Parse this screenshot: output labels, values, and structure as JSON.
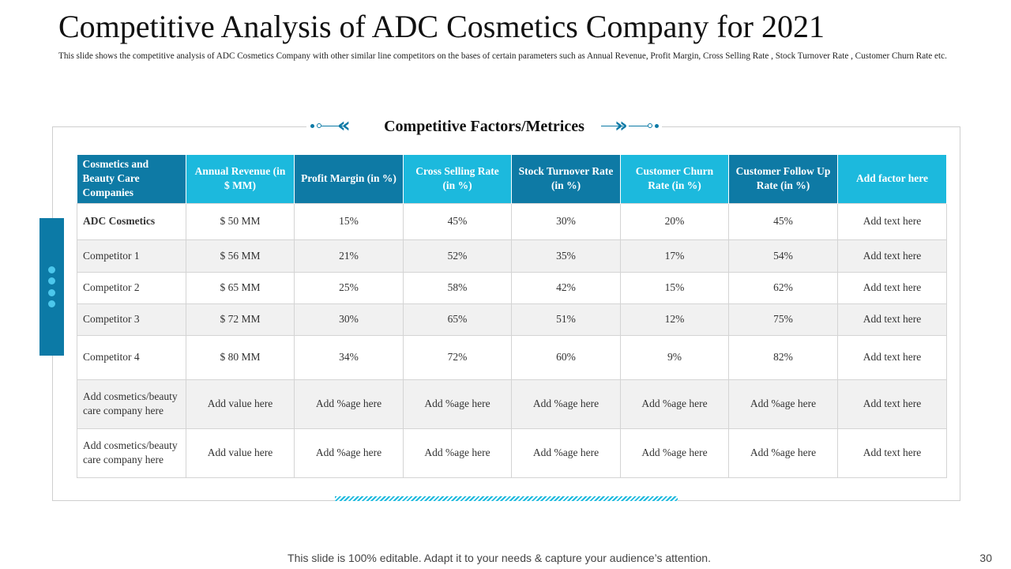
{
  "slide": {
    "title": "Competitive Analysis of ADC Cosmetics Company for 2021",
    "subtitle": "This slide shows the competitive analysis of ADC Cosmetics Company with other similar  line competitors on the bases of certain parameters such as Annual Revenue, Profit Margin, Cross Selling Rate , Stock Turnover Rate , Customer Churn Rate etc.",
    "footer": "This slide is 100% editable. Adapt it to your needs & capture your audience’s attention.",
    "page_number": "30"
  },
  "section": {
    "heading": "Competitive  Factors/Metrices",
    "left_chevron": "«",
    "right_chevron": "»"
  },
  "colors": {
    "dark_header": "#0e7aa5",
    "light_header": "#1cb9dd",
    "side_tab": "#0c7aa6"
  },
  "table": {
    "headers": [
      "Cosmetics and Beauty Care Companies",
      "Annual Revenue (in $ MM)",
      "Profit Margin (in %)",
      "Cross Selling Rate (in %)",
      "Stock Turnover Rate (in %)",
      "Customer Churn Rate (in %)",
      "Customer Follow Up Rate (in %)",
      "Add factor here"
    ],
    "rows": [
      [
        "ADC Cosmetics",
        "$ 50 MM",
        "15%",
        "45%",
        "30%",
        "20%",
        "45%",
        "Add text here"
      ],
      [
        "Competitor 1",
        "$ 56 MM",
        "21%",
        "52%",
        "35%",
        "17%",
        "54%",
        "Add text here"
      ],
      [
        "Competitor 2",
        "$ 65 MM",
        "25%",
        "58%",
        "42%",
        "15%",
        "62%",
        "Add text here"
      ],
      [
        "Competitor 3",
        "$ 72 MM",
        "30%",
        "65%",
        "51%",
        "12%",
        "75%",
        "Add text here"
      ],
      [
        "Competitor 4",
        "$ 80 MM",
        "34%",
        "72%",
        "60%",
        "9%",
        "82%",
        "Add text here"
      ],
      [
        "Add cosmetics/beauty care company here",
        "Add value here",
        "Add %age here",
        "Add %age here",
        "Add %age here",
        "Add %age here",
        "Add %age here",
        "Add text here"
      ],
      [
        "Add cosmetics/beauty care company here",
        "Add value here",
        "Add %age here",
        "Add %age here",
        "Add %age here",
        "Add %age here",
        "Add %age here",
        "Add text here"
      ]
    ]
  }
}
